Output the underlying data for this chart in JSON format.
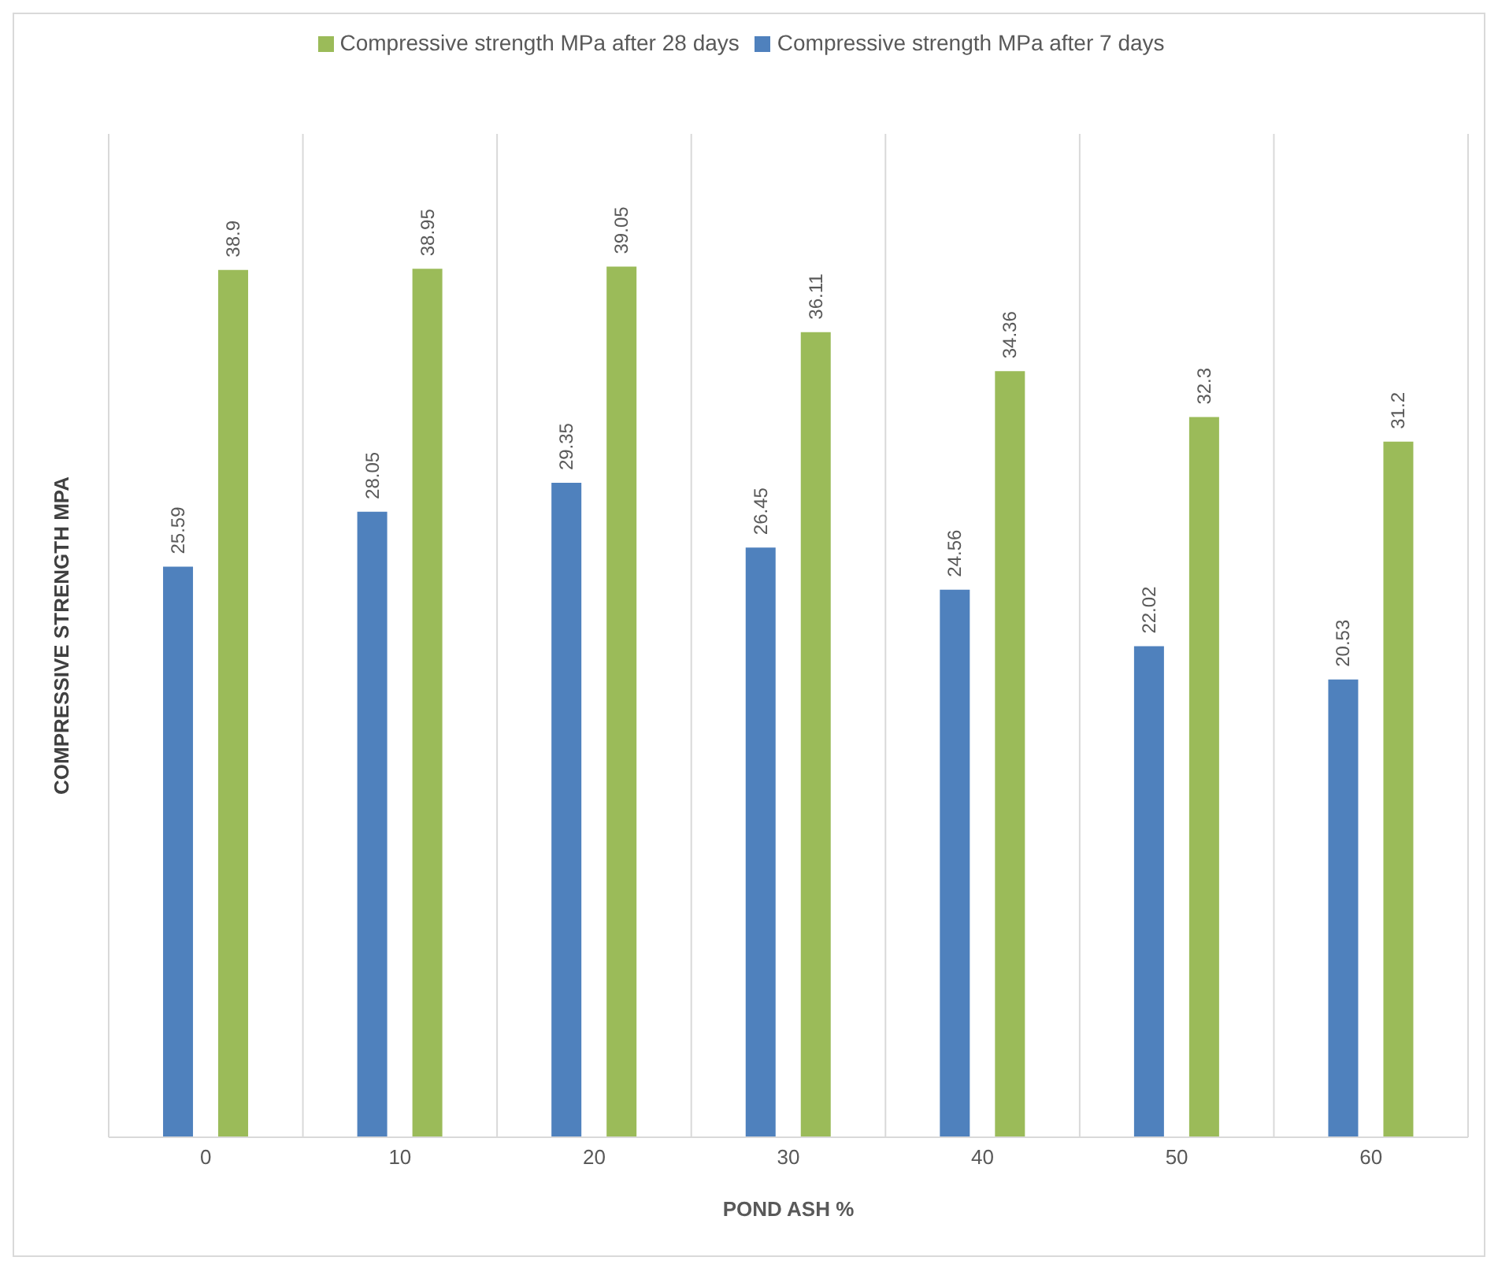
{
  "chart_data": {
    "type": "bar",
    "xlabel": "POND ASH %",
    "ylabel": "COMPRESSIVE STRENGTH MPA",
    "categories": [
      "0",
      "10",
      "20",
      "30",
      "40",
      "50",
      "60"
    ],
    "series": [
      {
        "name": "Compressive strength MPa  after 7 days",
        "color": "#4f81bd",
        "values": [
          25.59,
          28.05,
          29.35,
          26.45,
          24.56,
          22.02,
          20.53
        ]
      },
      {
        "name": "Compressive strength MPa  after 28 days",
        "color": "#9bbb59",
        "values": [
          38.9,
          38.95,
          39.05,
          36.11,
          34.36,
          32.3,
          31.2
        ]
      }
    ],
    "ylim": [
      0,
      45
    ],
    "data_labels": true,
    "grid": "x",
    "legend": "top",
    "tick_labels": "x"
  }
}
